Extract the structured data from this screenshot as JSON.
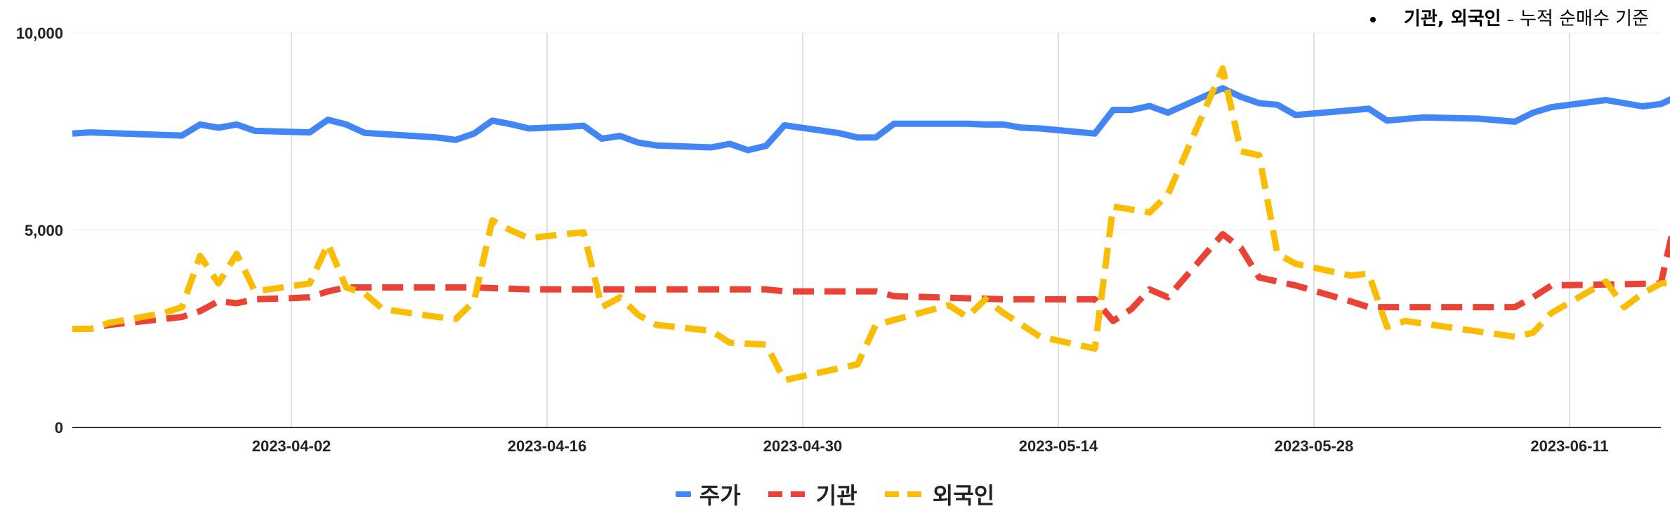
{
  "note": {
    "bold_text": "기관, 외국인",
    "dash": "–",
    "rest_text": "누적 순매수 기준"
  },
  "chart_data": {
    "type": "line",
    "title": "",
    "xlabel": "",
    "ylabel": "",
    "ylim": [
      0,
      10000
    ],
    "yticks": [
      0,
      5000,
      10000
    ],
    "ytick_labels": [
      "0",
      "5,000",
      "10,000"
    ],
    "xlim": [
      "2023-03-21",
      "2023-06-16"
    ],
    "xtick_labels": [
      "2023-04-02",
      "2023-04-16",
      "2023-04-30",
      "2023-05-14",
      "2023-05-28",
      "2023-06-11"
    ],
    "grid": "vertical",
    "legend_position": "bottom",
    "series": [
      {
        "name": "주가",
        "color": "#4285f4",
        "style": "solid",
        "points": [
          [
            "2023-03-21",
            7450
          ],
          [
            "2023-03-22",
            7480
          ],
          [
            "2023-03-25",
            7430
          ],
          [
            "2023-03-27",
            7400
          ],
          [
            "2023-03-28",
            7680
          ],
          [
            "2023-03-29",
            7600
          ],
          [
            "2023-03-30",
            7680
          ],
          [
            "2023-03-31",
            7520
          ],
          [
            "2023-04-03",
            7480
          ],
          [
            "2023-04-04",
            7800
          ],
          [
            "2023-04-05",
            7680
          ],
          [
            "2023-04-06",
            7470
          ],
          [
            "2023-04-10",
            7350
          ],
          [
            "2023-04-11",
            7290
          ],
          [
            "2023-04-12",
            7450
          ],
          [
            "2023-04-13",
            7780
          ],
          [
            "2023-04-14",
            7690
          ],
          [
            "2023-04-15",
            7580
          ],
          [
            "2023-04-17",
            7620
          ],
          [
            "2023-04-18",
            7650
          ],
          [
            "2023-04-19",
            7320
          ],
          [
            "2023-04-20",
            7390
          ],
          [
            "2023-04-21",
            7220
          ],
          [
            "2023-04-22",
            7150
          ],
          [
            "2023-04-25",
            7100
          ],
          [
            "2023-04-26",
            7190
          ],
          [
            "2023-04-27",
            7030
          ],
          [
            "2023-04-28",
            7140
          ],
          [
            "2023-04-29",
            7660
          ],
          [
            "2023-05-02",
            7460
          ],
          [
            "2023-05-03",
            7350
          ],
          [
            "2023-05-04",
            7350
          ],
          [
            "2023-05-05",
            7700
          ],
          [
            "2023-05-09",
            7700
          ],
          [
            "2023-05-10",
            7680
          ],
          [
            "2023-05-11",
            7680
          ],
          [
            "2023-05-12",
            7600
          ],
          [
            "2023-05-13",
            7580
          ],
          [
            "2023-05-16",
            7450
          ],
          [
            "2023-05-17",
            8050
          ],
          [
            "2023-05-18",
            8050
          ],
          [
            "2023-05-19",
            8150
          ],
          [
            "2023-05-20",
            7980
          ],
          [
            "2023-05-23",
            8600
          ],
          [
            "2023-05-24",
            8380
          ],
          [
            "2023-05-25",
            8220
          ],
          [
            "2023-05-26",
            8180
          ],
          [
            "2023-05-27",
            7920
          ],
          [
            "2023-05-31",
            8080
          ],
          [
            "2023-06-01",
            7780
          ],
          [
            "2023-06-02",
            7820
          ],
          [
            "2023-06-03",
            7860
          ],
          [
            "2023-06-06",
            7830
          ],
          [
            "2023-06-08",
            7750
          ],
          [
            "2023-06-09",
            7980
          ],
          [
            "2023-06-10",
            8120
          ],
          [
            "2023-06-13",
            8300
          ],
          [
            "2023-06-15",
            8140
          ],
          [
            "2023-06-16",
            8200
          ],
          [
            "2023-06-17",
            8420
          ]
        ]
      },
      {
        "name": "기관",
        "color": "#ea4335",
        "style": "dashed",
        "points": [
          [
            "2023-03-21",
            2500
          ],
          [
            "2023-03-22",
            2500
          ],
          [
            "2023-03-23",
            2600
          ],
          [
            "2023-03-26",
            2750
          ],
          [
            "2023-03-27",
            2800
          ],
          [
            "2023-03-28",
            2950
          ],
          [
            "2023-03-29",
            3200
          ],
          [
            "2023-03-30",
            3150
          ],
          [
            "2023-03-31",
            3250
          ],
          [
            "2023-04-02",
            3280
          ],
          [
            "2023-04-03",
            3300
          ],
          [
            "2023-04-04",
            3450
          ],
          [
            "2023-04-05",
            3550
          ],
          [
            "2023-04-12",
            3550
          ],
          [
            "2023-04-15",
            3500
          ],
          [
            "2023-04-28",
            3500
          ],
          [
            "2023-04-29",
            3450
          ],
          [
            "2023-05-04",
            3450
          ],
          [
            "2023-05-05",
            3330
          ],
          [
            "2023-05-11",
            3250
          ],
          [
            "2023-05-16",
            3250
          ],
          [
            "2023-05-17",
            2700
          ],
          [
            "2023-05-18",
            3000
          ],
          [
            "2023-05-19",
            3500
          ],
          [
            "2023-05-20",
            3300
          ],
          [
            "2023-05-23",
            4900
          ],
          [
            "2023-05-24",
            4550
          ],
          [
            "2023-05-25",
            3800
          ],
          [
            "2023-05-27",
            3600
          ],
          [
            "2023-05-30",
            3200
          ],
          [
            "2023-05-31",
            3050
          ],
          [
            "2023-06-02",
            3050
          ],
          [
            "2023-06-08",
            3050
          ],
          [
            "2023-06-09",
            3300
          ],
          [
            "2023-06-10",
            3600
          ],
          [
            "2023-06-16",
            3650
          ],
          [
            "2023-06-17",
            5700
          ]
        ]
      },
      {
        "name": "외국인",
        "color": "#fbbc04",
        "style": "dashed",
        "points": [
          [
            "2023-03-21",
            2500
          ],
          [
            "2023-03-22",
            2500
          ],
          [
            "2023-03-23",
            2650
          ],
          [
            "2023-03-26",
            2900
          ],
          [
            "2023-03-27",
            3050
          ],
          [
            "2023-03-28",
            4350
          ],
          [
            "2023-03-29",
            3650
          ],
          [
            "2023-03-30",
            4400
          ],
          [
            "2023-03-31",
            3450
          ],
          [
            "2023-04-03",
            3650
          ],
          [
            "2023-04-04",
            4650
          ],
          [
            "2023-04-05",
            3550
          ],
          [
            "2023-04-06",
            3400
          ],
          [
            "2023-04-07",
            3000
          ],
          [
            "2023-04-10",
            2800
          ],
          [
            "2023-04-11",
            2750
          ],
          [
            "2023-04-12",
            3200
          ],
          [
            "2023-04-13",
            5250
          ],
          [
            "2023-04-14",
            5000
          ],
          [
            "2023-04-15",
            4800
          ],
          [
            "2023-04-18",
            4950
          ],
          [
            "2023-04-19",
            3050
          ],
          [
            "2023-04-20",
            3300
          ],
          [
            "2023-04-21",
            2850
          ],
          [
            "2023-04-22",
            2600
          ],
          [
            "2023-04-25",
            2450
          ],
          [
            "2023-04-26",
            2150
          ],
          [
            "2023-04-28",
            2100
          ],
          [
            "2023-04-29",
            1200
          ],
          [
            "2023-05-03",
            1600
          ],
          [
            "2023-05-04",
            2600
          ],
          [
            "2023-05-08",
            3100
          ],
          [
            "2023-05-09",
            2800
          ],
          [
            "2023-05-10",
            3250
          ],
          [
            "2023-05-11",
            2900
          ],
          [
            "2023-05-13",
            2300
          ],
          [
            "2023-05-16",
            2000
          ],
          [
            "2023-05-17",
            5600
          ],
          [
            "2023-05-19",
            5450
          ],
          [
            "2023-05-20",
            5900
          ],
          [
            "2023-05-23",
            9100
          ],
          [
            "2023-05-24",
            7000
          ],
          [
            "2023-05-25",
            6900
          ],
          [
            "2023-05-26",
            4400
          ],
          [
            "2023-05-27",
            4150
          ],
          [
            "2023-05-30",
            3850
          ],
          [
            "2023-05-31",
            3900
          ],
          [
            "2023-06-01",
            2550
          ],
          [
            "2023-06-02",
            2700
          ],
          [
            "2023-06-08",
            2300
          ],
          [
            "2023-06-09",
            2400
          ],
          [
            "2023-06-10",
            2900
          ],
          [
            "2023-06-13",
            3700
          ],
          [
            "2023-06-14",
            3050
          ],
          [
            "2023-06-15",
            3400
          ],
          [
            "2023-06-16",
            3650
          ],
          [
            "2023-06-17",
            3700
          ]
        ]
      }
    ]
  }
}
